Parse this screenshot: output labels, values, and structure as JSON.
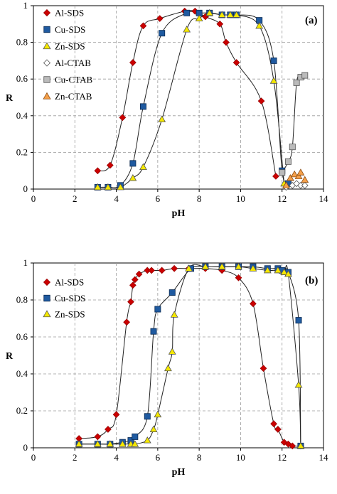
{
  "chart_data": [
    {
      "type": "scatter",
      "panel_label": "(a)",
      "xlabel": "pH",
      "ylabel": "R",
      "xlim": [
        0,
        14
      ],
      "ylim": [
        0,
        1
      ],
      "xticks": [
        "0",
        "2",
        "4",
        "6",
        "8",
        "10",
        "12",
        "14"
      ],
      "yticks": [
        "0",
        "0.2",
        "0.4",
        "0.6",
        "0.8",
        "1"
      ],
      "grid": true,
      "legend_position": "top-left",
      "series": [
        {
          "name": "Al-SDS",
          "marker": "diamond",
          "color": "#cc0000",
          "stroke": "#990000",
          "x": [
            3.1,
            3.7,
            4.3,
            4.8,
            5.3,
            6.1,
            7.3,
            7.8,
            8.3,
            9.0,
            9.3,
            9.8,
            11.0,
            11.7
          ],
          "y": [
            0.1,
            0.13,
            0.39,
            0.69,
            0.89,
            0.93,
            0.97,
            0.97,
            0.94,
            0.9,
            0.8,
            0.69,
            0.48,
            0.07
          ]
        },
        {
          "name": "Cu-SDS",
          "marker": "square",
          "color": "#1f5aa0",
          "stroke": "#0b2a52",
          "x": [
            3.1,
            3.6,
            4.2,
            4.8,
            5.3,
            6.2,
            7.4,
            8.0,
            8.5,
            9.1,
            9.5,
            9.8,
            10.9,
            11.6,
            12.0,
            12.3
          ],
          "y": [
            0.01,
            0.01,
            0.02,
            0.14,
            0.45,
            0.85,
            0.96,
            0.96,
            0.96,
            0.95,
            0.95,
            0.95,
            0.92,
            0.7,
            0.1,
            0.03
          ]
        },
        {
          "name": "Zn-SDS",
          "marker": "triangle",
          "color": "#f5e800",
          "stroke": "#555555",
          "x": [
            3.1,
            3.6,
            4.2,
            4.8,
            5.3,
            6.2,
            7.4,
            8.0,
            8.5,
            9.1,
            9.5,
            9.8,
            10.9,
            11.6,
            12.1
          ],
          "y": [
            0.01,
            0.01,
            0.01,
            0.06,
            0.12,
            0.38,
            0.87,
            0.93,
            0.96,
            0.95,
            0.95,
            0.95,
            0.89,
            0.59,
            0.03
          ]
        },
        {
          "name": "Al-CTAB",
          "marker": "diamond",
          "color": "#ffffff",
          "stroke": "#555555",
          "x": [
            12.2,
            12.5,
            12.7,
            12.9,
            13.1
          ],
          "y": [
            0.01,
            0.02,
            0.03,
            0.02,
            0.02
          ]
        },
        {
          "name": "Cu-CTAB",
          "marker": "square",
          "color": "#bbbbbb",
          "stroke": "#555555",
          "x": [
            12.0,
            12.3,
            12.5,
            12.7,
            12.9,
            13.1
          ],
          "y": [
            0.09,
            0.15,
            0.23,
            0.58,
            0.61,
            0.62
          ]
        },
        {
          "name": "Zn-CTAB",
          "marker": "triangle",
          "color": "#f5a04a",
          "stroke": "#8a4a10",
          "x": [
            12.2,
            12.4,
            12.6,
            12.8,
            12.9,
            13.1
          ],
          "y": [
            0.02,
            0.06,
            0.08,
            0.07,
            0.09,
            0.05
          ]
        }
      ]
    },
    {
      "type": "scatter",
      "panel_label": "(b)",
      "xlabel": "pH",
      "ylabel": "R",
      "xlim": [
        0,
        14
      ],
      "ylim": [
        0,
        1
      ],
      "xticks": [
        "0",
        "2",
        "4",
        "6",
        "8",
        "10",
        "12",
        "14"
      ],
      "yticks": [
        "0",
        "0.2",
        "0.4",
        "0.6",
        "0.8",
        "1"
      ],
      "grid": true,
      "legend_position": "top-left",
      "series": [
        {
          "name": "Al-SDS",
          "marker": "diamond",
          "color": "#cc0000",
          "stroke": "#990000",
          "x": [
            2.2,
            3.1,
            3.6,
            4.0,
            4.5,
            4.7,
            4.8,
            4.9,
            5.1,
            5.5,
            5.7,
            6.2,
            6.8,
            7.5,
            8.3,
            9.1,
            9.9,
            10.6,
            11.1,
            11.6,
            11.8,
            12.1,
            12.3,
            12.5,
            12.9
          ],
          "y": [
            0.05,
            0.06,
            0.1,
            0.18,
            0.68,
            0.79,
            0.88,
            0.91,
            0.94,
            0.96,
            0.96,
            0.96,
            0.97,
            0.97,
            0.97,
            0.96,
            0.92,
            0.78,
            0.43,
            0.13,
            0.1,
            0.03,
            0.02,
            0.01,
            0.01
          ]
        },
        {
          "name": "Cu-SDS",
          "marker": "square",
          "color": "#1f5aa0",
          "stroke": "#0b2a52",
          "x": [
            2.2,
            3.1,
            3.7,
            4.3,
            4.7,
            4.9,
            5.5,
            5.8,
            6.0,
            6.7,
            7.6,
            8.3,
            9.1,
            9.9,
            10.6,
            11.3,
            11.8,
            12.0,
            12.3,
            12.8,
            12.9
          ],
          "y": [
            0.02,
            0.02,
            0.02,
            0.03,
            0.04,
            0.06,
            0.17,
            0.63,
            0.75,
            0.84,
            0.97,
            0.98,
            0.98,
            0.98,
            0.98,
            0.97,
            0.97,
            0.96,
            0.95,
            0.69,
            0.01
          ]
        },
        {
          "name": "Zn-SDS",
          "marker": "triangle",
          "color": "#f5e800",
          "stroke": "#555555",
          "x": [
            2.2,
            3.1,
            3.7,
            4.3,
            4.7,
            4.9,
            5.5,
            5.8,
            6.0,
            6.5,
            6.7,
            6.8,
            7.5,
            8.3,
            9.1,
            9.9,
            10.6,
            11.3,
            11.8,
            12.1,
            12.3,
            12.8,
            12.9
          ],
          "y": [
            0.02,
            0.02,
            0.02,
            0.02,
            0.02,
            0.02,
            0.04,
            0.1,
            0.18,
            0.43,
            0.52,
            0.72,
            0.97,
            0.98,
            0.98,
            0.98,
            0.97,
            0.96,
            0.96,
            0.95,
            0.94,
            0.34,
            0.01
          ]
        }
      ]
    }
  ]
}
